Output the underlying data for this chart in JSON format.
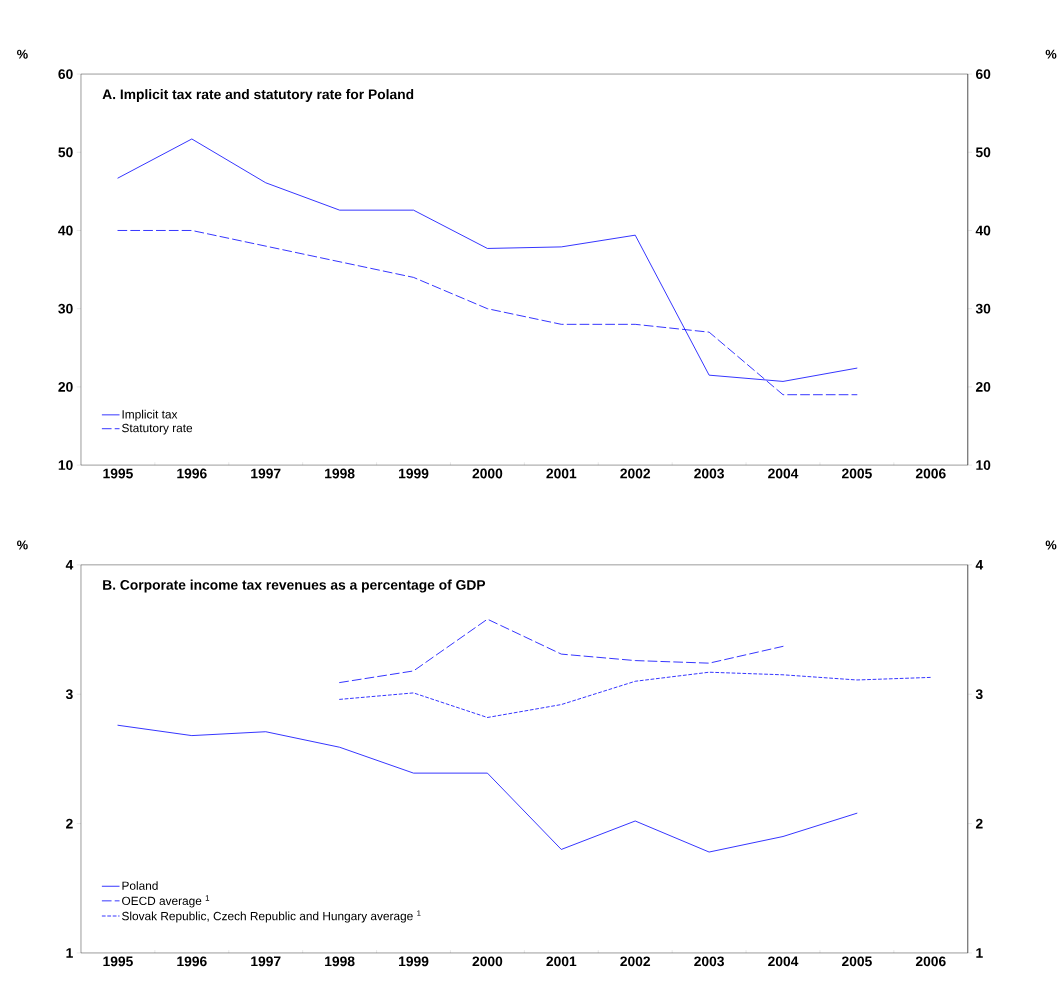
{
  "chart_data": [
    {
      "type": "line",
      "title": "**A. Implicit tax rate and statutory rate for Poland**",
      "ylabel": "%",
      "y2label": "%",
      "categories": [
        "1995",
        "1996",
        "1997",
        "1998",
        "1999",
        "2000",
        "2001",
        "2002",
        "2003",
        "2004",
        "2005",
        "2006"
      ],
      "series": [
        {
          "name": "Implicit tax",
          "color": "#0000ff",
          "line_style": "solid",
          "values": [
            46.7,
            51.7,
            46.1,
            42.6,
            42.6,
            37.7,
            37.9,
            39.4,
            21.5,
            20.7,
            22.4,
            null
          ]
        },
        {
          "name": "Statutory rate",
          "color": "#0000ff",
          "line_style": "dashed",
          "values": [
            40,
            40,
            38,
            36,
            34,
            30,
            28,
            28,
            27,
            19,
            19,
            null
          ]
        }
      ],
      "ylim": [
        10,
        60
      ],
      "yticks": [
        10,
        20,
        30,
        40,
        50,
        60
      ],
      "y2lim": [
        10,
        60
      ],
      "y2ticks": [
        10,
        20,
        30,
        40,
        50,
        60
      ],
      "legend": "bottom left",
      "grid": false,
      "marker": "none"
    },
    {
      "type": "line",
      "title": "**B. Corporate income tax revenues as a percentage of GDP**",
      "ylabel": "%",
      "y2label": "%",
      "categories": [
        "1995",
        "1996",
        "1997",
        "1998",
        "1999",
        "2000",
        "2001",
        "2002",
        "2003",
        "2004",
        "2005",
        "2006"
      ],
      "series": [
        {
          "name": "Poland",
          "color": "#0000ff",
          "line_style": "solid",
          "values": [
            2.76,
            2.68,
            2.71,
            2.59,
            2.39,
            2.39,
            1.8,
            2.02,
            1.78,
            1.9,
            2.08,
            null
          ]
        },
        {
          "name": "OECD average $^{1}$",
          "color": "#0000ff",
          "line_style": "dashed",
          "values": [
            null,
            null,
            null,
            3.09,
            3.18,
            3.58,
            3.31,
            3.26,
            3.24,
            3.37,
            null,
            null
          ]
        },
        {
          "name": "Slovak Republic, Czech Republic and Hungary average $^{1}$",
          "color": "#0000ff",
          "line_style": "dotted",
          "values": [
            null,
            null,
            null,
            2.96,
            3.01,
            2.82,
            2.92,
            3.1,
            3.17,
            3.15,
            3.11,
            3.13
          ]
        }
      ],
      "ylim": [
        1,
        4
      ],
      "yticks": [
        1,
        2,
        3,
        4
      ],
      "y2lim": [
        1,
        4
      ],
      "y2ticks": [
        1,
        2,
        3,
        4
      ],
      "legend": "bottom left",
      "grid": false,
      "marker": "none"
    }
  ]
}
